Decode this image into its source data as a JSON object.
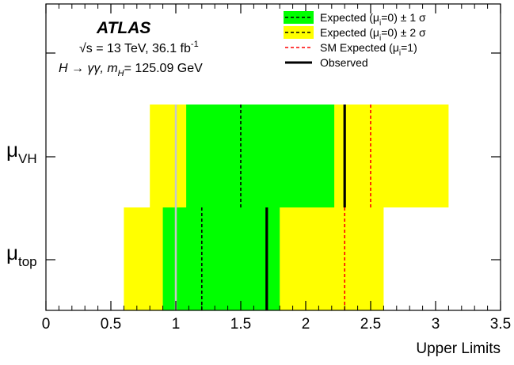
{
  "chart_data": {
    "type": "bar",
    "orientation": "horizontal",
    "xlabel": "Upper Limits",
    "xlim": [
      0,
      3.5
    ],
    "x_ticks": [
      "0",
      "0.5",
      "1",
      "1.5",
      "2",
      "2.5",
      "3",
      "3.5"
    ],
    "categories": [
      "μ_top",
      "μ_VH"
    ],
    "category_labels": [
      {
        "base": "μ",
        "sub": "top"
      },
      {
        "base": "μ",
        "sub": "VH"
      }
    ],
    "series": [
      {
        "key": "band2",
        "values": [
          [
            0.6,
            2.6
          ],
          [
            0.8,
            3.1
          ]
        ]
      },
      {
        "key": "band1",
        "values": [
          [
            0.9,
            1.8
          ],
          [
            1.08,
            2.22
          ]
        ]
      },
      {
        "key": "expected",
        "values": [
          1.2,
          1.5
        ]
      },
      {
        "key": "sm_expected",
        "values": [
          2.3,
          2.5
        ]
      },
      {
        "key": "observed",
        "values": [
          1.7,
          2.3
        ]
      }
    ],
    "reference_line": 1,
    "grid": false,
    "legend_position": "top-right",
    "legend": [
      {
        "key": "band1",
        "symbol": "green-box-dashed",
        "text": "Expected (μ",
        "sub": "i",
        "text2": "=0) ± 1 σ"
      },
      {
        "key": "band2",
        "symbol": "yellow-box-dashed",
        "text": "Expected (μ",
        "sub": "i",
        "text2": "=0) ± 2 σ"
      },
      {
        "key": "sm_expected",
        "symbol": "red-dashed-line",
        "text": "SM Expected (μ",
        "sub": "i",
        "text2": "=1)"
      },
      {
        "key": "observed",
        "symbol": "black-solid-line",
        "text": "Observed",
        "sub": "",
        "text2": ""
      }
    ],
    "annotations": {
      "experiment": "ATLAS",
      "line1_energy": "= 13 TeV, 36.1 fb",
      "line1_lumi_sup": "-1",
      "line1_sqrt": "√s",
      "line2_process": "H → γγ, m",
      "line2_sub": "H",
      "line2_mass": "= 125.09 GeV"
    },
    "colors": {
      "band1": "#00ff00",
      "band2": "#ffff00",
      "expected": "#000000",
      "sm_expected": "#ff0000",
      "observed": "#000000",
      "reference": "#c8c8c8"
    }
  }
}
